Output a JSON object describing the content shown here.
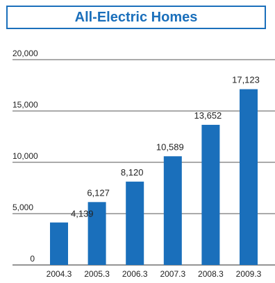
{
  "chart_data": {
    "type": "bar",
    "title": "All-Electric Homes",
    "categories": [
      "2004.3",
      "2005.3",
      "2006.3",
      "2007.3",
      "2008.3",
      "2009.3"
    ],
    "values": [
      4139,
      6127,
      8120,
      10589,
      13652,
      17123
    ],
    "data_labels": [
      "4,139",
      "6,127",
      "8,120",
      "10,589",
      "13,652",
      "17,123"
    ],
    "y_ticks": [
      0,
      5000,
      10000,
      15000,
      20000
    ],
    "y_tick_labels": [
      "0",
      "5,000",
      "10,000",
      "15,000",
      "20,000"
    ],
    "ylim": [
      0,
      20000
    ],
    "grid": true,
    "bar_color": "#1a6fbb",
    "title_color": "#1a6fbb"
  }
}
